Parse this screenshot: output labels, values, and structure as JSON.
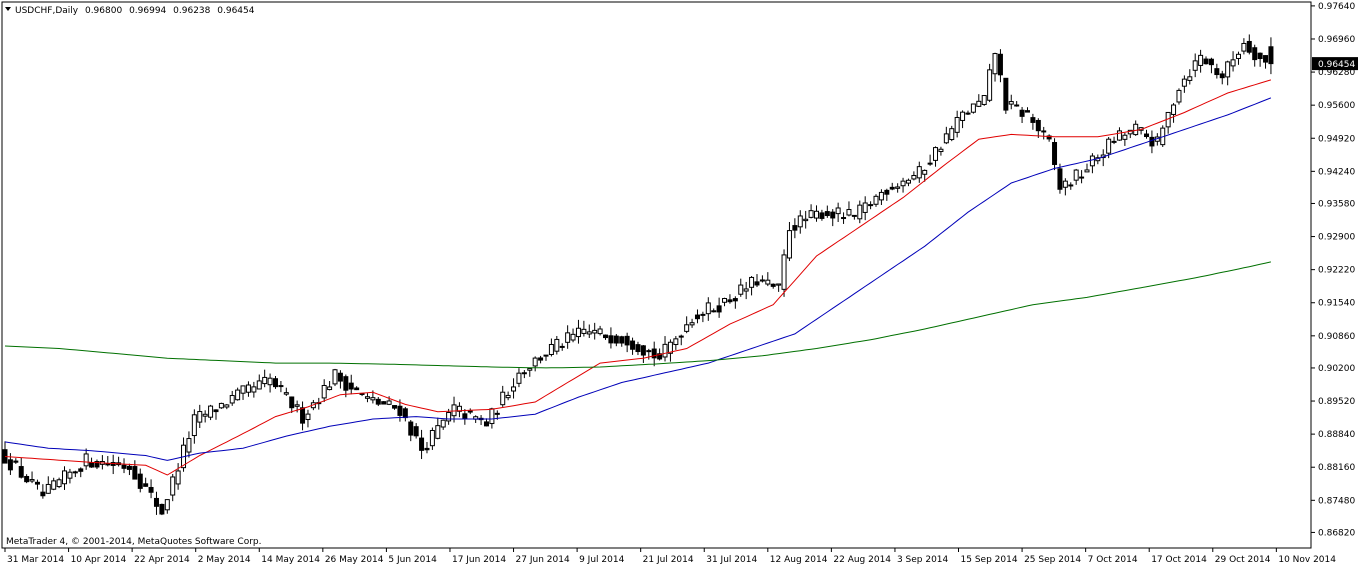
{
  "header": {
    "symbol": "USDCHF,Daily",
    "open": "0.96800",
    "high": "0.96994",
    "low": "0.96238",
    "close": "0.96454"
  },
  "copyright": "MetaTrader 4, © 2001-2014, MetaQuotes Software Corp.",
  "current_price_label": "0.96454",
  "colors": {
    "background": "#ffffff",
    "frame": "#000000",
    "candle": "#000000",
    "ma_fast": "#e00000",
    "ma_medium": "#0000b8",
    "ma_slow": "#007000",
    "price_label_bg": "#000000",
    "price_label_fg": "#ffffff"
  },
  "chart_data": {
    "type": "candlestick",
    "title": "USDCHF,Daily",
    "ylim": [
      0.865,
      0.9772
    ],
    "y_ticks": [
      "0.97640",
      "0.96960",
      "0.96280",
      "0.95600",
      "0.94920",
      "0.94240",
      "0.93580",
      "0.92900",
      "0.92220",
      "0.91540",
      "0.90860",
      "0.90200",
      "0.89520",
      "0.88840",
      "0.88160",
      "0.87480",
      "0.86820"
    ],
    "x_ticks": [
      "31 Mar 2014",
      "10 Apr 2014",
      "22 Apr 2014",
      "2 May 2014",
      "14 May 2014",
      "26 May 2014",
      "5 Jun 2014",
      "17 Jun 2014",
      "27 Jun 2014",
      "9 Jul 2014",
      "21 Jul 2014",
      "31 Jul 2014",
      "12 Aug 2014",
      "22 Aug 2014",
      "3 Sep 2014",
      "15 Sep 2014",
      "25 Sep 2014",
      "7 Oct 2014",
      "17 Oct 2014",
      "29 Oct 2014",
      "10 Nov 2014"
    ],
    "anchors": [
      [
        0,
        0.8848
      ],
      [
        8,
        0.8757
      ],
      [
        16,
        0.883
      ],
      [
        24,
        0.8818
      ],
      [
        30,
        0.8725
      ],
      [
        36,
        0.8912
      ],
      [
        44,
        0.8963
      ],
      [
        50,
        0.8995
      ],
      [
        56,
        0.892
      ],
      [
        62,
        0.9005
      ],
      [
        68,
        0.8955
      ],
      [
        74,
        0.8935
      ],
      [
        78,
        0.8852
      ],
      [
        84,
        0.8935
      ],
      [
        90,
        0.8905
      ],
      [
        96,
        0.901
      ],
      [
        102,
        0.906
      ],
      [
        108,
        0.9095
      ],
      [
        116,
        0.908
      ],
      [
        122,
        0.904
      ],
      [
        128,
        0.9125
      ],
      [
        134,
        0.9155
      ],
      [
        140,
        0.92
      ],
      [
        144,
        0.918
      ],
      [
        146,
        0.931
      ],
      [
        152,
        0.934
      ],
      [
        158,
        0.933
      ],
      [
        164,
        0.939
      ],
      [
        170,
        0.942
      ],
      [
        174,
        0.948
      ],
      [
        178,
        0.954
      ],
      [
        182,
        0.957
      ],
      [
        184,
        0.967
      ],
      [
        186,
        0.956
      ],
      [
        190,
        0.954
      ],
      [
        194,
        0.948
      ],
      [
        196,
        0.939
      ],
      [
        200,
        0.942
      ],
      [
        206,
        0.949
      ],
      [
        210,
        0.951
      ],
      [
        214,
        0.948
      ],
      [
        218,
        0.96
      ],
      [
        222,
        0.966
      ],
      [
        226,
        0.962
      ],
      [
        230,
        0.969
      ],
      [
        234,
        0.9645
      ]
    ],
    "moving_averages": [
      {
        "color": "#e00000",
        "points": [
          [
            0,
            0.8838
          ],
          [
            16,
            0.8826
          ],
          [
            26,
            0.882
          ],
          [
            30,
            0.88
          ],
          [
            36,
            0.884
          ],
          [
            44,
            0.8885
          ],
          [
            50,
            0.892
          ],
          [
            56,
            0.894
          ],
          [
            62,
            0.8965
          ],
          [
            68,
            0.897
          ],
          [
            74,
            0.8945
          ],
          [
            80,
            0.893
          ],
          [
            90,
            0.8935
          ],
          [
            98,
            0.895
          ],
          [
            104,
            0.899
          ],
          [
            110,
            0.903
          ],
          [
            118,
            0.904
          ],
          [
            126,
            0.906
          ],
          [
            134,
            0.911
          ],
          [
            142,
            0.915
          ],
          [
            150,
            0.925
          ],
          [
            158,
            0.931
          ],
          [
            166,
            0.937
          ],
          [
            174,
            0.944
          ],
          [
            180,
            0.949
          ],
          [
            186,
            0.95
          ],
          [
            194,
            0.9495
          ],
          [
            202,
            0.9495
          ],
          [
            210,
            0.951
          ],
          [
            218,
            0.9545
          ],
          [
            226,
            0.9585
          ],
          [
            234,
            0.9612
          ]
        ]
      },
      {
        "color": "#0000b8",
        "points": [
          [
            0,
            0.8868
          ],
          [
            8,
            0.8855
          ],
          [
            16,
            0.885
          ],
          [
            26,
            0.884
          ],
          [
            30,
            0.883
          ],
          [
            36,
            0.8845
          ],
          [
            44,
            0.8855
          ],
          [
            52,
            0.888
          ],
          [
            60,
            0.89
          ],
          [
            68,
            0.8915
          ],
          [
            76,
            0.892
          ],
          [
            82,
            0.8915
          ],
          [
            90,
            0.8915
          ],
          [
            98,
            0.8925
          ],
          [
            106,
            0.896
          ],
          [
            114,
            0.899
          ],
          [
            122,
            0.901
          ],
          [
            130,
            0.903
          ],
          [
            138,
            0.906
          ],
          [
            146,
            0.909
          ],
          [
            154,
            0.915
          ],
          [
            162,
            0.921
          ],
          [
            170,
            0.927
          ],
          [
            178,
            0.934
          ],
          [
            186,
            0.94
          ],
          [
            194,
            0.943
          ],
          [
            202,
            0.945
          ],
          [
            210,
            0.948
          ],
          [
            218,
            0.951
          ],
          [
            226,
            0.954
          ],
          [
            234,
            0.9575
          ]
        ]
      },
      {
        "color": "#007000",
        "points": [
          [
            0,
            0.9065
          ],
          [
            10,
            0.906
          ],
          [
            20,
            0.905
          ],
          [
            30,
            0.904
          ],
          [
            40,
            0.9035
          ],
          [
            50,
            0.903
          ],
          [
            60,
            0.903
          ],
          [
            70,
            0.9028
          ],
          [
            80,
            0.9025
          ],
          [
            90,
            0.9022
          ],
          [
            100,
            0.902
          ],
          [
            110,
            0.9022
          ],
          [
            120,
            0.9028
          ],
          [
            130,
            0.9035
          ],
          [
            140,
            0.9045
          ],
          [
            150,
            0.906
          ],
          [
            160,
            0.9078
          ],
          [
            170,
            0.91
          ],
          [
            180,
            0.9125
          ],
          [
            190,
            0.915
          ],
          [
            200,
            0.9165
          ],
          [
            210,
            0.9185
          ],
          [
            220,
            0.9205
          ],
          [
            230,
            0.9228
          ],
          [
            234,
            0.9238
          ]
        ]
      }
    ],
    "last_candle": {
      "open": 0.968,
      "high": 0.96994,
      "low": 0.96238,
      "close": 0.96454
    }
  }
}
